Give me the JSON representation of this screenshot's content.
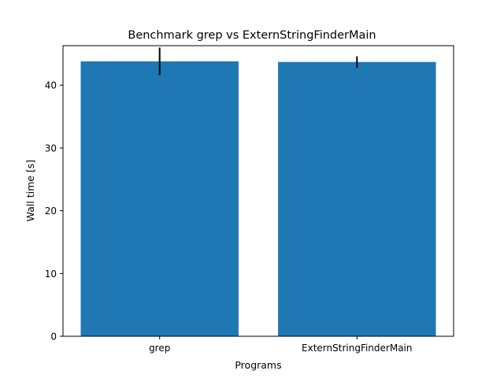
{
  "chart_data": {
    "type": "bar",
    "title": "Benchmark grep vs ExternStringFinderMain",
    "xlabel": "Programs",
    "ylabel": "Wall time [s]",
    "categories": [
      "grep",
      "ExternStringFinderMain"
    ],
    "values": [
      43.8,
      43.7
    ],
    "errors": [
      2.2,
      0.9
    ],
    "ylim": [
      0,
      46.3
    ],
    "yticks": [
      0,
      10,
      20,
      30,
      40
    ],
    "grid": false,
    "bar_color": "#1f77b4",
    "error_color": "#000000"
  }
}
